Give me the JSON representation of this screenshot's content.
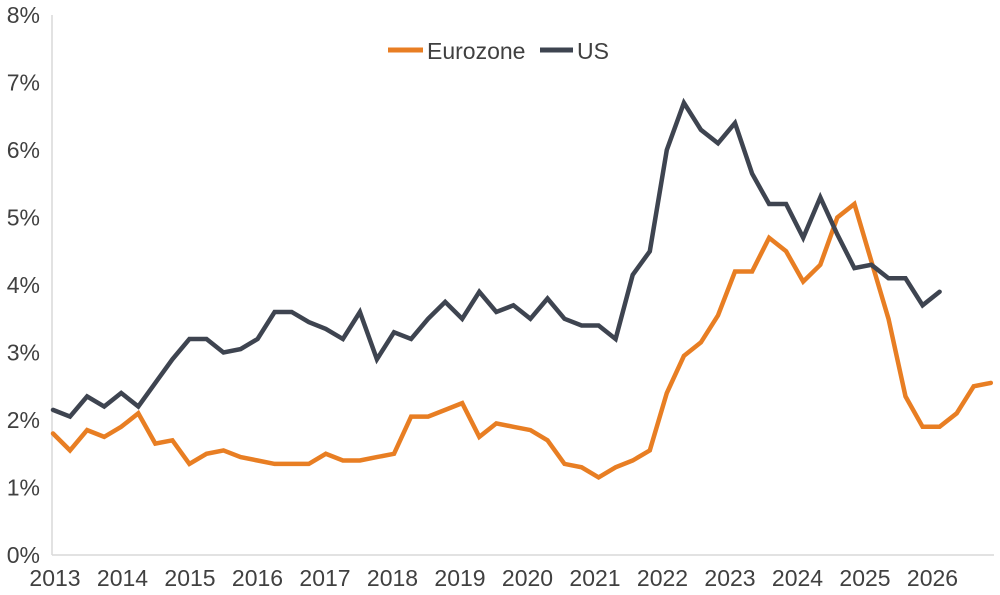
{
  "colors": {
    "background": "#FFFFFF",
    "axis_line": "#D9D9D9",
    "label_text": "#404040",
    "eurozone_orange": "#E87E23",
    "us_dark": "#3E4450"
  },
  "legend": {
    "items": [
      {
        "label": "Eurozone",
        "color": "#E87E23"
      },
      {
        "label": "US",
        "color": "#3E4450"
      }
    ]
  },
  "chart_data": {
    "type": "line",
    "title": "",
    "xlabel": "",
    "ylabel": "",
    "grid": false,
    "legend_position": "top-center",
    "frequency": "quarterly",
    "x_start": "2013-Q1",
    "ylim": [
      0,
      8
    ],
    "y_tick_labels": [
      "0%",
      "1%",
      "2%",
      "3%",
      "4%",
      "5%",
      "6%",
      "7%",
      "8%"
    ],
    "x_tick_labels": [
      "2013",
      "2014",
      "2015",
      "2016",
      "2017",
      "2018",
      "2019",
      "2020",
      "2021",
      "2022",
      "2023",
      "2024",
      "2025",
      "2026"
    ],
    "series": [
      {
        "name": "Eurozone",
        "color": "#E87E23",
        "start": "2013-Q1",
        "values": [
          1.8,
          1.55,
          1.85,
          1.75,
          1.9,
          2.1,
          1.65,
          1.7,
          1.35,
          1.5,
          1.55,
          1.45,
          1.4,
          1.35,
          1.35,
          1.35,
          1.5,
          1.4,
          1.4,
          1.45,
          1.5,
          2.05,
          2.05,
          2.15,
          2.25,
          1.75,
          1.95,
          1.9,
          1.85,
          1.7,
          1.35,
          1.3,
          1.15,
          1.3,
          1.4,
          1.55,
          2.4,
          2.95,
          3.15,
          3.55,
          4.2,
          4.2,
          4.7,
          4.5,
          4.05,
          4.3,
          5.0,
          5.2,
          4.35,
          3.5,
          2.35,
          1.9,
          1.9,
          2.1,
          2.5,
          2.55
        ]
      },
      {
        "name": "US",
        "color": "#3E4450",
        "start": "2013-Q1",
        "values": [
          2.15,
          2.05,
          2.35,
          2.2,
          2.4,
          2.2,
          2.55,
          2.9,
          3.2,
          3.2,
          3.0,
          3.05,
          3.2,
          3.6,
          3.6,
          3.45,
          3.35,
          3.2,
          3.6,
          2.9,
          3.3,
          3.2,
          3.5,
          3.75,
          3.5,
          3.9,
          3.6,
          3.7,
          3.5,
          3.8,
          3.5,
          3.4,
          3.4,
          3.2,
          4.15,
          4.5,
          6.0,
          6.7,
          6.3,
          6.1,
          6.4,
          5.65,
          5.2,
          5.2,
          4.7,
          5.3,
          4.75,
          4.25,
          4.3,
          4.1,
          4.1,
          3.7,
          3.9
        ]
      }
    ]
  }
}
